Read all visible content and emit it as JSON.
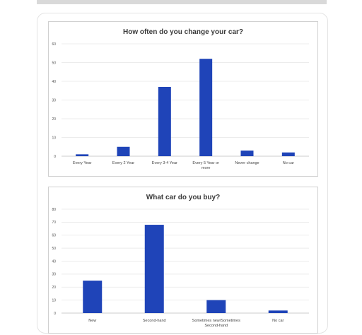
{
  "colors": {
    "bar": "#1f44b8",
    "grid": "#e6e6e6"
  },
  "chart_data": [
    {
      "type": "bar",
      "title": "How often do you change your car?",
      "categories": [
        "Every Year",
        "Every 2 Year",
        "Every 3-4 Year",
        "Every 5 Year or more",
        "Never change",
        "No car"
      ],
      "values": [
        1,
        5,
        37,
        52,
        3,
        2
      ],
      "yticks": [
        0,
        10,
        20,
        30,
        40,
        50,
        60
      ],
      "ylim": [
        0,
        60
      ],
      "grid": true,
      "legend": "none"
    },
    {
      "type": "bar",
      "title": "What car do you buy?",
      "categories": [
        "New",
        "Second-hand",
        "Sometimes new/Sometimes Second-hand",
        "No car"
      ],
      "values": [
        25,
        68,
        10,
        2
      ],
      "yticks": [
        0,
        10,
        20,
        30,
        40,
        50,
        60,
        70,
        80
      ],
      "ylim": [
        0,
        80
      ],
      "grid": true,
      "legend": "none"
    }
  ]
}
